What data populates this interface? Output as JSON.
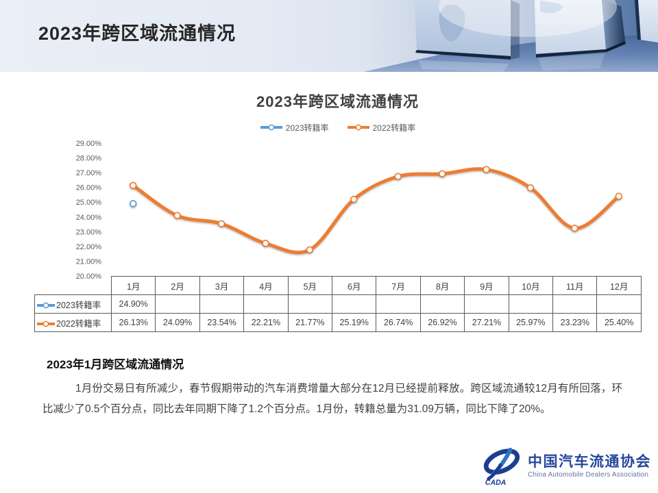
{
  "header": {
    "title": "2023年跨区域流通情况"
  },
  "chart_data": {
    "type": "line",
    "title": "2023年跨区域流通情况",
    "categories": [
      "1月",
      "2月",
      "3月",
      "4月",
      "5月",
      "6月",
      "7月",
      "8月",
      "9月",
      "10月",
      "11月",
      "12月"
    ],
    "series": [
      {
        "name": "2023转籍率",
        "color": "#5B9BD5",
        "values": [
          24.9,
          null,
          null,
          null,
          null,
          null,
          null,
          null,
          null,
          null,
          null,
          null
        ],
        "labels": [
          "24.90%",
          "",
          "",
          "",
          "",
          "",
          "",
          "",
          "",
          "",
          "",
          ""
        ]
      },
      {
        "name": "2022转籍率",
        "color": "#ED7D31",
        "values": [
          26.13,
          24.09,
          23.54,
          22.21,
          21.77,
          25.19,
          26.74,
          26.92,
          27.21,
          25.97,
          23.23,
          25.4
        ],
        "labels": [
          "26.13%",
          "24.09%",
          "23.54%",
          "22.21%",
          "21.77%",
          "25.19%",
          "26.74%",
          "26.92%",
          "27.21%",
          "25.97%",
          "23.23%",
          "25.40%"
        ]
      }
    ],
    "ylim": [
      20,
      29
    ],
    "ytick_step": 1,
    "ytick_labels": [
      "20.00%",
      "21.00%",
      "22.00%",
      "23.00%",
      "24.00%",
      "25.00%",
      "26.00%",
      "27.00%",
      "28.00%",
      "29.00%"
    ],
    "grid": false,
    "legend_position": "top",
    "show_data_table": true,
    "line_style": "smooth",
    "marker": "circle-white-fill"
  },
  "note": {
    "heading": "2023年1月跨区域流通情况",
    "body": "1月份交易日有所减少，春节假期带动的汽车消费增量大部分在12月已经提前释放。跨区域流通较12月有所回落，环比减少了0.5个百分点，同比去年同期下降了1.2个百分点。1月份，转籍总量为31.09万辆，同比下降了20%。"
  },
  "logo": {
    "name_cn": "中国汽车流通协会",
    "name_en": "China Automobile Dealers Association",
    "mark_text": "CADA",
    "brand_dark": "#1d3d91",
    "brand_light": "#2f74c0"
  }
}
